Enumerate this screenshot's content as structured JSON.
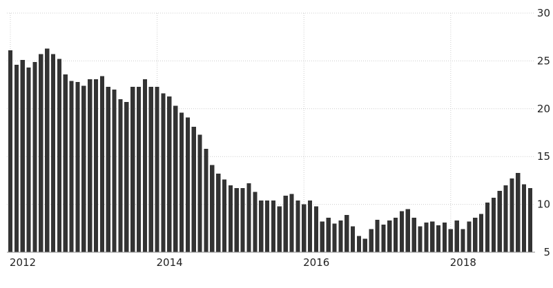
{
  "chart_data": {
    "type": "bar",
    "title": "",
    "xlabel": "",
    "ylabel": "",
    "ylim": [
      5,
      30
    ],
    "y_ticks": [
      "5",
      "10",
      "15",
      "20",
      "25",
      "30"
    ],
    "x_tick_labels": [
      "2012",
      "2014",
      "2016",
      "2018"
    ],
    "y_axis_side": "right",
    "grid": "dotted",
    "bar_color": "#333333",
    "gridline_color": "#cccccc",
    "series": [
      {
        "values": [
          26.1,
          24.6,
          25.1,
          24.3,
          24.9,
          25.7,
          26.3,
          25.7,
          25.2,
          23.6,
          22.9,
          22.8,
          22.4,
          23.1,
          23.1,
          23.4,
          22.3,
          22.0,
          21.0,
          20.7,
          22.3,
          22.3,
          23.1,
          22.3,
          22.3,
          21.6,
          21.3,
          20.3,
          19.6,
          19.1,
          18.1,
          17.3,
          15.8,
          14.1,
          13.2,
          12.6,
          12.0,
          11.7,
          11.7,
          12.2,
          11.3,
          10.4,
          10.4,
          10.4,
          9.8,
          10.9,
          11.1,
          10.4,
          10.0,
          10.4,
          9.8,
          8.2,
          8.6,
          8.0,
          8.3,
          8.9,
          7.7,
          6.7,
          6.4,
          7.4,
          8.4,
          7.9,
          8.3,
          8.6,
          9.3,
          9.5,
          8.6,
          7.7,
          8.1,
          8.2,
          7.8,
          8.1,
          7.4,
          8.3,
          7.4,
          8.2,
          8.6,
          9.0,
          10.2,
          10.7,
          11.4,
          12.0,
          12.7,
          13.3,
          12.1,
          11.7
        ]
      }
    ]
  }
}
